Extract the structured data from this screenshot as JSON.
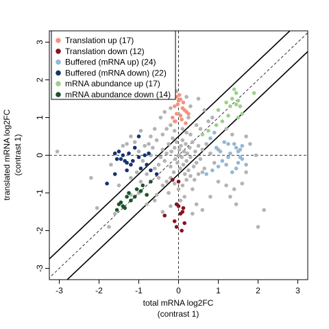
{
  "chart_data": {
    "type": "scatter",
    "xlabel": "total mRNA log2FC",
    "xlabel_sub": "(contrast 1)",
    "ylabel": "translated mRNA log2FC",
    "ylabel_sub": "(contrast 1)",
    "xlim": [
      -3.25,
      3.25
    ],
    "ylim": [
      -3.3,
      3.3
    ],
    "xticks": [
      -3,
      -2,
      -1,
      0,
      1,
      2,
      3
    ],
    "yticks": [
      -3,
      -2,
      -1,
      0,
      1,
      2,
      3
    ],
    "legend_position": "top-left",
    "reference_lines": {
      "identity_dashed": true,
      "horizontal_zero_dashed": true,
      "vertical_zero_dashed": true,
      "solid_offsets": [
        0.5,
        -0.5
      ]
    },
    "legend": [
      {
        "label": "Translation up (17)",
        "color": "#f4937e"
      },
      {
        "label": "Translation down (12)",
        "color": "#8b0f22"
      },
      {
        "label": "Buffered (mRNA up) (24)",
        "color": "#94b8d6"
      },
      {
        "label": "Buffered (mRNA down) (22)",
        "color": "#16326e"
      },
      {
        "label": "mRNA abundance up (17)",
        "color": "#9dd08a"
      },
      {
        "label": "mRNA abundance down (14)",
        "color": "#1a5429"
      }
    ],
    "background_color": "#b3b3b3",
    "series": [
      {
        "group": 0,
        "color": "#f4937e",
        "points": [
          [
            -0.05,
            1.55
          ],
          [
            0.0,
            1.45
          ],
          [
            0.05,
            1.48
          ],
          [
            -0.1,
            1.3
          ],
          [
            0.1,
            1.25
          ],
          [
            0.15,
            1.2
          ],
          [
            -0.05,
            1.1
          ],
          [
            0.05,
            1.05
          ],
          [
            0.2,
            1.15
          ],
          [
            -0.15,
            1.0
          ],
          [
            0.08,
            0.95
          ],
          [
            0.25,
            1.1
          ],
          [
            -0.02,
            1.35
          ],
          [
            0.12,
            1.4
          ],
          [
            -0.08,
            0.9
          ],
          [
            0.18,
            0.85
          ],
          [
            0.02,
            1.6
          ]
        ]
      },
      {
        "group": 1,
        "color": "#8b0f22",
        "points": [
          [
            -0.35,
            -1.6
          ],
          [
            -0.05,
            -1.3
          ],
          [
            0.0,
            -1.35
          ],
          [
            0.1,
            -1.5
          ],
          [
            0.05,
            -1.55
          ],
          [
            -0.1,
            -1.75
          ],
          [
            0.15,
            -1.8
          ],
          [
            -0.05,
            -1.9
          ],
          [
            0.08,
            -2.0
          ],
          [
            -0.15,
            -0.65
          ],
          [
            0.0,
            -0.7
          ],
          [
            0.12,
            -1.4
          ]
        ]
      },
      {
        "group": 2,
        "color": "#94b8d6",
        "points": [
          [
            0.9,
            0.6
          ],
          [
            1.15,
            0.35
          ],
          [
            1.25,
            0.3
          ],
          [
            1.45,
            0.2
          ],
          [
            1.5,
            0.1
          ],
          [
            1.55,
            0.15
          ],
          [
            1.55,
            -0.05
          ],
          [
            1.6,
            -0.1
          ],
          [
            1.5,
            -0.2
          ],
          [
            1.45,
            -0.35
          ],
          [
            1.2,
            -0.25
          ],
          [
            1.1,
            -0.15
          ],
          [
            1.3,
            0.05
          ],
          [
            0.95,
            0.2
          ],
          [
            1.0,
            -0.3
          ],
          [
            0.85,
            -0.4
          ],
          [
            1.35,
            -0.45
          ],
          [
            1.6,
            0.25
          ],
          [
            1.4,
            0.3
          ],
          [
            0.8,
            0.45
          ],
          [
            1.7,
            -0.25
          ],
          [
            1.25,
            -0.05
          ],
          [
            0.7,
            -0.5
          ],
          [
            1.05,
            0.1
          ]
        ]
      },
      {
        "group": 3,
        "color": "#16326e",
        "points": [
          [
            -1.6,
            0.05
          ],
          [
            -1.55,
            -0.1
          ],
          [
            -1.4,
            0.0
          ],
          [
            -1.35,
            -0.15
          ],
          [
            -1.3,
            -0.2
          ],
          [
            -1.2,
            -0.25
          ],
          [
            -1.15,
            -0.15
          ],
          [
            -1.0,
            -0.05
          ],
          [
            -0.95,
            -0.35
          ],
          [
            -0.8,
            -0.25
          ],
          [
            -0.85,
            0.0
          ],
          [
            -0.7,
            -0.4
          ],
          [
            -1.5,
            0.1
          ],
          [
            -1.25,
            0.05
          ],
          [
            -1.1,
            0.2
          ],
          [
            -1.6,
            -0.5
          ],
          [
            -1.3,
            -0.4
          ],
          [
            -1.8,
            -0.75
          ],
          [
            -1.0,
            0.5
          ],
          [
            -0.55,
            -0.5
          ],
          [
            -1.45,
            -0.1
          ],
          [
            -0.75,
            0.05
          ]
        ]
      },
      {
        "group": 4,
        "color": "#9dd08a",
        "points": [
          [
            1.4,
            1.75
          ],
          [
            1.45,
            1.65
          ],
          [
            1.35,
            1.5
          ],
          [
            1.5,
            1.45
          ],
          [
            1.3,
            1.3
          ],
          [
            1.45,
            1.35
          ],
          [
            1.55,
            1.3
          ],
          [
            1.6,
            1.1
          ],
          [
            1.25,
            1.05
          ],
          [
            1.1,
            0.9
          ],
          [
            0.95,
            0.8
          ],
          [
            0.75,
            0.65
          ],
          [
            0.6,
            0.55
          ],
          [
            1.5,
            1.0
          ],
          [
            1.9,
            1.65
          ],
          [
            1.2,
            1.4
          ],
          [
            1.0,
            1.2
          ]
        ]
      },
      {
        "group": 5,
        "color": "#1a5429",
        "points": [
          [
            -1.55,
            -1.45
          ],
          [
            -1.45,
            -1.25
          ],
          [
            -1.4,
            -1.35
          ],
          [
            -1.3,
            -1.1
          ],
          [
            -1.2,
            -1.2
          ],
          [
            -1.1,
            -1.1
          ],
          [
            -1.05,
            -0.9
          ],
          [
            -0.95,
            -0.95
          ],
          [
            -0.9,
            -0.8
          ],
          [
            -0.7,
            -0.7
          ],
          [
            -1.5,
            -1.3
          ],
          [
            -1.35,
            -1.4
          ],
          [
            -1.25,
            -1.0
          ],
          [
            -0.8,
            -1.05
          ]
        ]
      }
    ],
    "background_points": [
      [
        -3.05,
        0.1
      ],
      [
        -2.2,
        -0.6
      ],
      [
        -2.05,
        -1.4
      ],
      [
        -1.75,
        -1.9
      ],
      [
        -1.6,
        -1.55
      ],
      [
        -1.2,
        -1.05
      ],
      [
        -0.95,
        -0.7
      ],
      [
        -0.8,
        -0.5
      ],
      [
        -0.6,
        -0.35
      ],
      [
        -0.5,
        -0.25
      ],
      [
        -0.45,
        -0.05
      ],
      [
        -0.4,
        0.15
      ],
      [
        -0.35,
        -0.15
      ],
      [
        -0.3,
        0.05
      ],
      [
        -0.25,
        0.3
      ],
      [
        -0.2,
        -0.3
      ],
      [
        -0.18,
        0.1
      ],
      [
        -0.15,
        0.45
      ],
      [
        -0.12,
        -0.45
      ],
      [
        -0.1,
        0.2
      ],
      [
        -0.08,
        -0.1
      ],
      [
        -0.05,
        0.35
      ],
      [
        -0.03,
        -0.2
      ],
      [
        0.0,
        0.0
      ],
      [
        0.02,
        0.15
      ],
      [
        0.04,
        -0.35
      ],
      [
        0.06,
        0.25
      ],
      [
        0.08,
        -0.05
      ],
      [
        0.1,
        0.4
      ],
      [
        0.12,
        -0.25
      ],
      [
        0.14,
        0.1
      ],
      [
        0.16,
        -0.5
      ],
      [
        0.18,
        0.3
      ],
      [
        0.2,
        -0.15
      ],
      [
        0.22,
        0.05
      ],
      [
        0.25,
        -0.4
      ],
      [
        0.28,
        0.2
      ],
      [
        0.3,
        -0.05
      ],
      [
        0.35,
        0.35
      ],
      [
        0.38,
        -0.3
      ],
      [
        0.42,
        0.1
      ],
      [
        0.45,
        -0.2
      ],
      [
        0.5,
        0.25
      ],
      [
        0.55,
        -0.1
      ],
      [
        0.6,
        0.15
      ],
      [
        0.65,
        -0.35
      ],
      [
        0.7,
        0.3
      ],
      [
        0.8,
        0.05
      ],
      [
        0.9,
        -0.2
      ],
      [
        1.0,
        0.15
      ],
      [
        -0.55,
        0.4
      ],
      [
        -0.65,
        0.2
      ],
      [
        -0.7,
        0.0
      ],
      [
        -0.75,
        0.3
      ],
      [
        -0.85,
        0.25
      ],
      [
        -0.9,
        -0.15
      ],
      [
        -1.0,
        0.1
      ],
      [
        -0.4,
        0.55
      ],
      [
        -0.3,
        0.7
      ],
      [
        -0.2,
        0.8
      ],
      [
        -0.1,
        0.9
      ],
      [
        0.0,
        1.1
      ],
      [
        0.1,
        0.7
      ],
      [
        0.2,
        0.6
      ],
      [
        0.3,
        0.55
      ],
      [
        -0.1,
        0.65
      ],
      [
        -0.2,
        -0.6
      ],
      [
        -0.1,
        -0.75
      ],
      [
        0.0,
        -0.9
      ],
      [
        0.1,
        -0.8
      ],
      [
        0.2,
        -0.65
      ],
      [
        0.3,
        -0.55
      ],
      [
        -0.3,
        -0.7
      ],
      [
        -0.4,
        -0.8
      ],
      [
        -0.5,
        -0.6
      ],
      [
        0.4,
        -0.65
      ],
      [
        0.5,
        -0.5
      ],
      [
        0.6,
        -0.45
      ],
      [
        -0.25,
        -1.0
      ],
      [
        0.15,
        -1.1
      ],
      [
        0.35,
        -0.9
      ],
      [
        -0.45,
        1.0
      ],
      [
        -0.35,
        1.15
      ],
      [
        0.25,
        1.0
      ],
      [
        0.3,
        1.3
      ],
      [
        -0.2,
        1.25
      ],
      [
        0.45,
        0.8
      ],
      [
        0.55,
        0.7
      ],
      [
        0.75,
        0.9
      ],
      [
        0.85,
        1.0
      ],
      [
        -0.6,
        0.7
      ],
      [
        -0.7,
        0.5
      ],
      [
        -1.3,
        0.3
      ],
      [
        -1.1,
        0.35
      ],
      [
        -1.05,
        -0.45
      ],
      [
        -1.2,
        -0.6
      ],
      [
        -1.5,
        -0.8
      ],
      [
        -1.0,
        -1.0
      ],
      [
        -0.8,
        -1.3
      ],
      [
        -0.6,
        -1.2
      ],
      [
        -0.4,
        -1.5
      ],
      [
        -0.2,
        -1.35
      ],
      [
        0.05,
        -1.2
      ],
      [
        0.45,
        -1.3
      ],
      [
        0.6,
        -1.45
      ],
      [
        0.8,
        -1.1
      ],
      [
        1.0,
        -0.7
      ],
      [
        1.2,
        -0.8
      ],
      [
        1.4,
        -0.9
      ],
      [
        1.3,
        -1.1
      ],
      [
        1.45,
        -1.3
      ],
      [
        2.0,
        -1.9
      ],
      [
        2.15,
        -1.45
      ],
      [
        1.7,
        0.5
      ],
      [
        1.8,
        0.3
      ],
      [
        1.95,
        0.0
      ],
      [
        1.7,
        -0.45
      ],
      [
        1.35,
        0.55
      ],
      [
        1.2,
        0.7
      ],
      [
        -1.2,
        0.5
      ],
      [
        -1.4,
        0.25
      ],
      [
        -1.7,
        -0.25
      ],
      [
        -0.95,
        0.65
      ],
      [
        0.65,
        1.2
      ],
      [
        0.5,
        1.5
      ],
      [
        -0.05,
        1.7
      ],
      [
        0.2,
        1.55
      ],
      [
        0.35,
        -1.55
      ],
      [
        -0.55,
        -1.05
      ],
      [
        1.6,
        -0.75
      ]
    ]
  }
}
